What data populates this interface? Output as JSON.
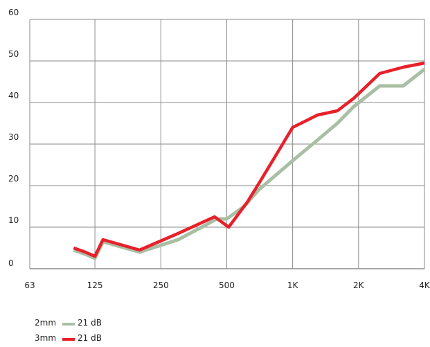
{
  "chart_data": {
    "type": "line",
    "xscale": "log",
    "xlim": [
      63,
      4000
    ],
    "ylim": [
      0,
      60
    ],
    "x_ticks": [
      {
        "value": 63,
        "label": "63"
      },
      {
        "value": 125,
        "label": "125"
      },
      {
        "value": 250,
        "label": "250"
      },
      {
        "value": 500,
        "label": "500"
      },
      {
        "value": 1000,
        "label": "1K"
      },
      {
        "value": 2000,
        "label": "2K"
      },
      {
        "value": 4000,
        "label": "4K"
      }
    ],
    "y_ticks": [
      0,
      10,
      20,
      30,
      40,
      50,
      60
    ],
    "grid": true,
    "legend_position": "bottom-left",
    "series": [
      {
        "name": "2mm",
        "legend_value": "21 dB",
        "color": "#a9bfa4",
        "points": [
          [
            100,
            4.5
          ],
          [
            113,
            3.5
          ],
          [
            125,
            2.5
          ],
          [
            136,
            6.5
          ],
          [
            200,
            4
          ],
          [
            300,
            7
          ],
          [
            400,
            10.5
          ],
          [
            450,
            12
          ],
          [
            500,
            12
          ],
          [
            600,
            15
          ],
          [
            700,
            19
          ],
          [
            1000,
            26
          ],
          [
            1300,
            31
          ],
          [
            1600,
            35
          ],
          [
            1900,
            39
          ],
          [
            2500,
            44
          ],
          [
            3200,
            44
          ],
          [
            4000,
            48
          ]
        ]
      },
      {
        "name": "3mm",
        "legend_value": "21 dB",
        "color": "#e8202a",
        "points": [
          [
            100,
            5
          ],
          [
            113,
            4
          ],
          [
            125,
            3
          ],
          [
            136,
            7
          ],
          [
            200,
            4.5
          ],
          [
            300,
            8.5
          ],
          [
            440,
            12.5
          ],
          [
            510,
            10
          ],
          [
            620,
            16
          ],
          [
            710,
            21
          ],
          [
            900,
            30
          ],
          [
            1000,
            34
          ],
          [
            1300,
            37
          ],
          [
            1600,
            38
          ],
          [
            1900,
            41
          ],
          [
            2500,
            47
          ],
          [
            3200,
            48.5
          ],
          [
            4000,
            49.5
          ]
        ]
      }
    ]
  }
}
